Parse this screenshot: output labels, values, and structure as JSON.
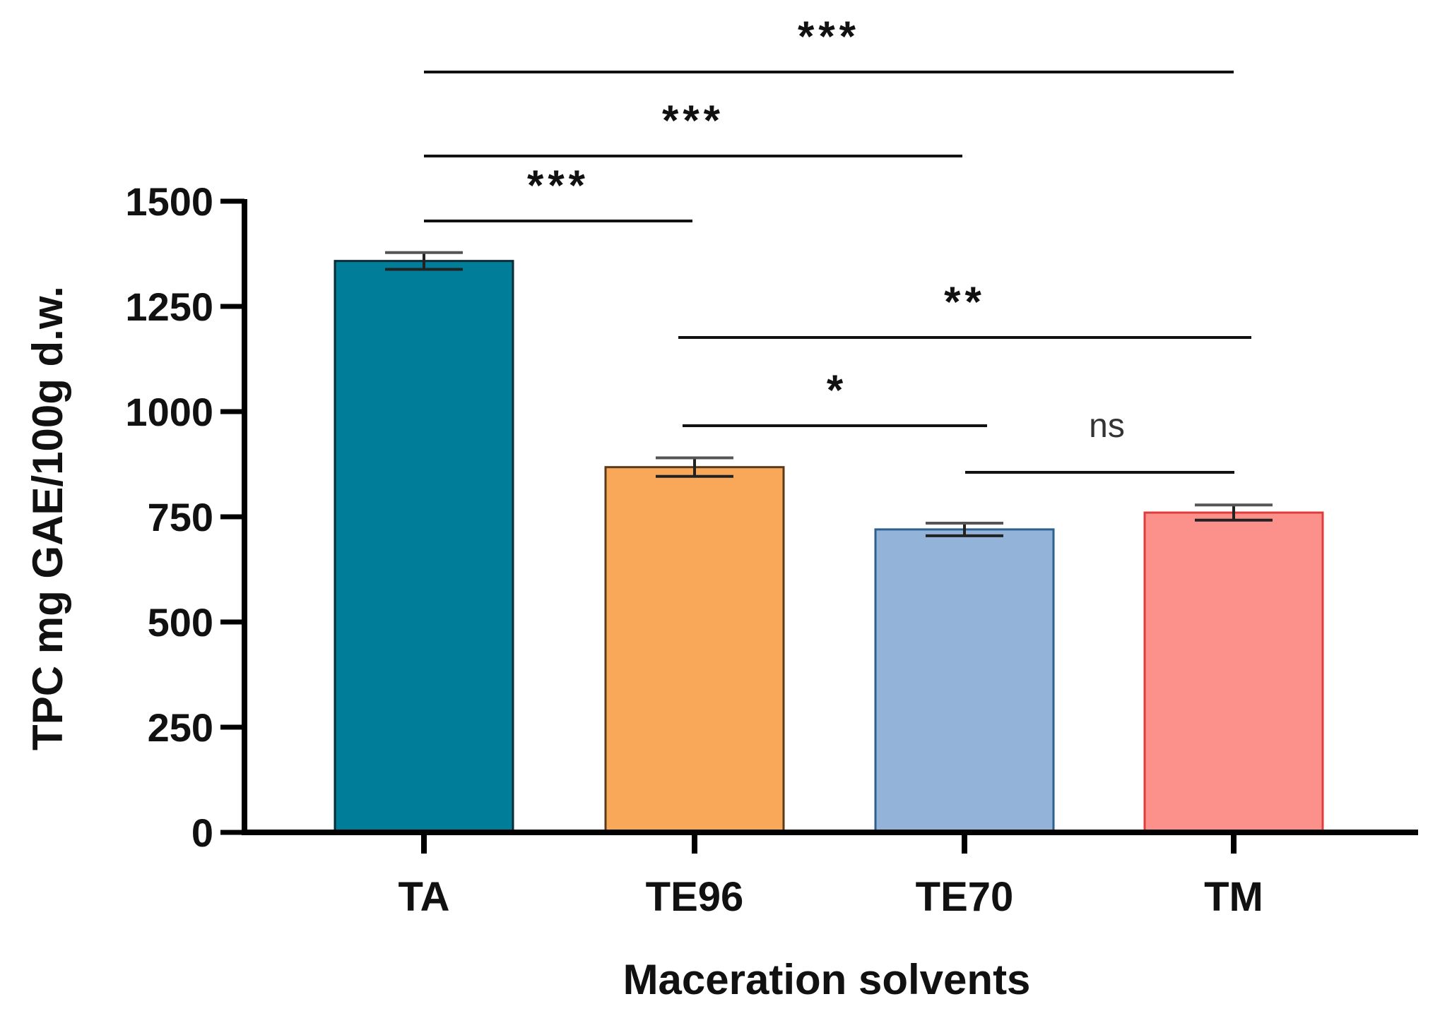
{
  "chart_data": {
    "type": "bar",
    "title": "",
    "xlabel": "Maceration solvents",
    "ylabel": "TPC mg GAE/100g d.w.",
    "ylim": [
      0,
      1500
    ],
    "yticks": [
      "0",
      "250",
      "500",
      "750",
      "1000",
      "1250",
      "1500"
    ],
    "categories": [
      "TA",
      "TE96",
      "TE70",
      "TM"
    ],
    "values": [
      1358,
      868,
      720,
      760
    ],
    "errors": [
      20,
      22,
      15,
      18
    ],
    "colors": [
      "#007d99",
      "#f9a85a",
      "#93b4d8",
      "#fb918a"
    ],
    "edge_colors": [
      "#0a2a35",
      "#5a3a1a",
      "#2d5f8f",
      "#e03c3c"
    ],
    "significance": [
      {
        "from": 0,
        "to": 3,
        "label": "***"
      },
      {
        "from": 0,
        "to": 2,
        "label": "***"
      },
      {
        "from": 0,
        "to": 1,
        "label": "***"
      },
      {
        "from": 1,
        "to": 3,
        "label": "**"
      },
      {
        "from": 1,
        "to": 2,
        "label": "*"
      },
      {
        "from": 2,
        "to": 3,
        "label": "ns"
      }
    ]
  }
}
